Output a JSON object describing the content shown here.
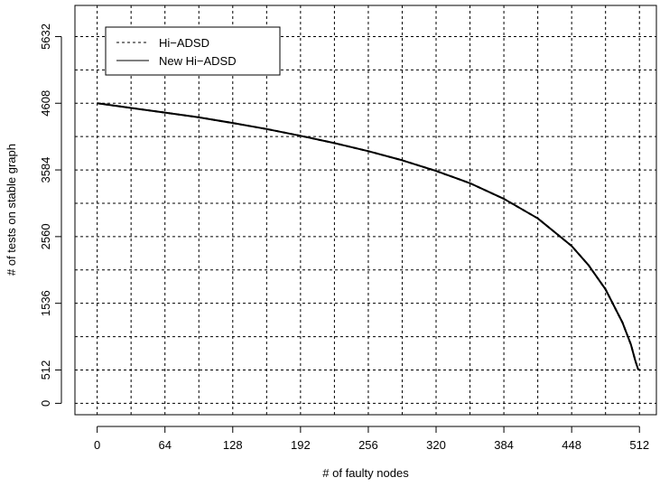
{
  "chart_data": {
    "type": "line",
    "title": "",
    "xlabel": "# of faulty nodes",
    "ylabel": "# of tests on stable graph",
    "x_ticks": [
      0,
      64,
      128,
      192,
      256,
      320,
      384,
      448,
      512
    ],
    "y_ticks": [
      0,
      512,
      1536,
      2560,
      3584,
      4608,
      5632
    ],
    "xlim": [
      -21,
      528
    ],
    "ylim": [
      -175,
      6110
    ],
    "grid": true,
    "legend_position": "top-left",
    "series": [
      {
        "name": "Hi−ADSD",
        "line_style": "dashed",
        "color": "#000000",
        "x": [
          0,
          32,
          64,
          96,
          128,
          160,
          192,
          224,
          256,
          288,
          320,
          352,
          384,
          416,
          448,
          464,
          480,
          496,
          504,
          508,
          510,
          511
        ],
        "y": [
          4608,
          4536,
          4464,
          4392,
          4304,
          4212,
          4108,
          3996,
          3872,
          3732,
          3568,
          3380,
          3140,
          2840,
          2416,
          2120,
          1750,
          1240,
          900,
          660,
          560,
          512
        ]
      },
      {
        "name": "New Hi−ADSD",
        "line_style": "solid",
        "color": "#000000",
        "x": [
          0,
          32,
          64,
          96,
          128,
          160,
          192,
          224,
          256,
          288,
          320,
          352,
          384,
          416,
          448,
          464,
          480,
          496,
          504,
          508,
          510,
          511
        ],
        "y": [
          4608,
          4536,
          4464,
          4392,
          4304,
          4212,
          4108,
          3996,
          3872,
          3732,
          3568,
          3380,
          3140,
          2840,
          2416,
          2120,
          1750,
          1240,
          900,
          660,
          560,
          512
        ]
      }
    ]
  }
}
